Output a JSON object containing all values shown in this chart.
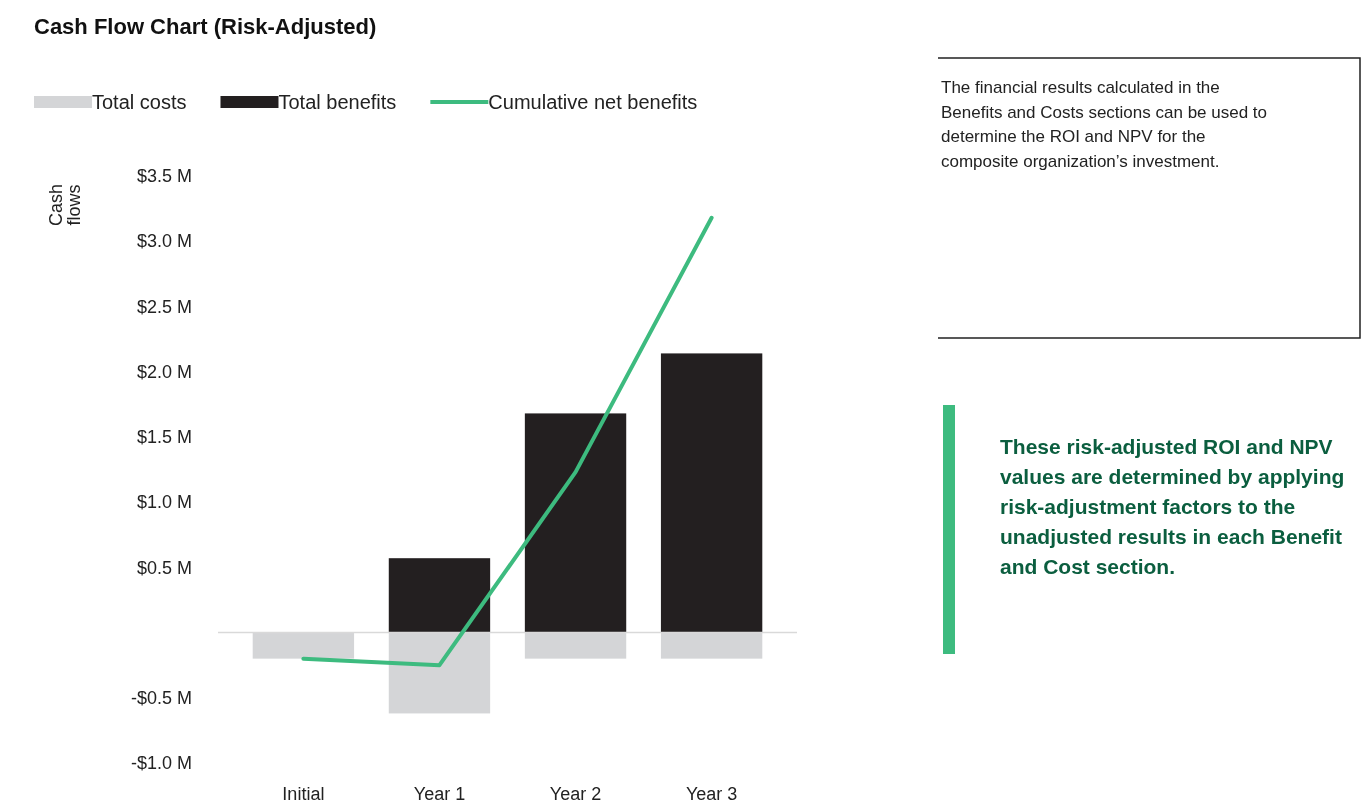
{
  "chart_data": {
    "type": "bar",
    "title": "Cash Flow Chart (Risk-Adjusted)",
    "ylabel": "Cash flows",
    "categories": [
      "Initial",
      "Year 1",
      "Year 2",
      "Year 3"
    ],
    "stacked": true,
    "series": [
      {
        "name": "Total costs",
        "color": "#d4d5d7",
        "values": [
          -0.2,
          -0.62,
          -0.2,
          -0.2
        ]
      },
      {
        "name": "Total benefits",
        "color": "#231f20",
        "values": [
          0,
          0.57,
          1.68,
          2.14
        ]
      },
      {
        "name": "Cumulative net benefits",
        "type": "line",
        "color": "#3dbb7f",
        "values": [
          -0.2,
          -0.25,
          1.23,
          3.18
        ]
      }
    ],
    "ylim": [
      -1,
      3.5
    ],
    "yticks": [
      {
        "value": -1,
        "label": "-$1.0 M"
      },
      {
        "value": -0.5,
        "label": "-$0.5 M"
      },
      {
        "value": 0,
        "label": null
      },
      {
        "value": 0.5,
        "label": "$0.5 M"
      },
      {
        "value": 1,
        "label": "$1.0 M"
      },
      {
        "value": 1.5,
        "label": "$1.5 M"
      },
      {
        "value": 2,
        "label": "$2.0 M"
      },
      {
        "value": 2.5,
        "label": "$2.5 M"
      },
      {
        "value": 3,
        "label": "$3.0 M"
      },
      {
        "value": 3.5,
        "label": "$3.5 M"
      }
    ],
    "legend": "top",
    "annotations": [
      "The financial results calculated in the Benefits and Costs sections can be used to determine the ROI and NPV for the composite organization’s investment.",
      "These risk-adjusted ROI and NPV values are determined by applying risk-adjustment factors to the unadjusted results in each Benefit and Cost section."
    ]
  }
}
